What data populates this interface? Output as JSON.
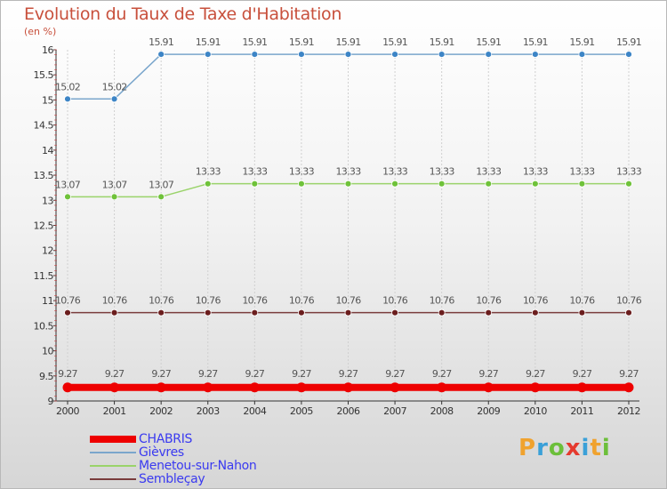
{
  "chart_data": {
    "type": "line",
    "title": "Evolution du Taux de Taxe d'Habitation",
    "ylabel": "(en %)",
    "xlabel": "",
    "categories": [
      "2000",
      "2001",
      "2002",
      "2003",
      "2004",
      "2005",
      "2006",
      "2007",
      "2008",
      "2009",
      "2010",
      "2011",
      "2012"
    ],
    "ylim": [
      9,
      16
    ],
    "yticks": [
      "9",
      "9.5",
      "10",
      "10.5",
      "11",
      "11.5",
      "12",
      "12.5",
      "13",
      "13.5",
      "14",
      "14.5",
      "15",
      "15.5",
      "16"
    ],
    "series": [
      {
        "name": "Gièvres",
        "color": "#7aa6cc",
        "marker": "#3d85c6",
        "width": 1.5,
        "values": [
          15.02,
          15.02,
          15.91,
          15.91,
          15.91,
          15.91,
          15.91,
          15.91,
          15.91,
          15.91,
          15.91,
          15.91,
          15.91
        ],
        "labels": [
          "15.02",
          "15.02",
          "15.91",
          "15.91",
          "15.91",
          "15.91",
          "15.91",
          "15.91",
          "15.91",
          "15.91",
          "15.91",
          "15.91",
          "15.91"
        ]
      },
      {
        "name": "Menetou-sur-Nahon",
        "color": "#9ad36a",
        "marker": "#6fc23a",
        "width": 1.5,
        "values": [
          13.07,
          13.07,
          13.07,
          13.33,
          13.33,
          13.33,
          13.33,
          13.33,
          13.33,
          13.33,
          13.33,
          13.33,
          13.33
        ],
        "labels": [
          "13.07",
          "13.07",
          "13.07",
          "13.33",
          "13.33",
          "13.33",
          "13.33",
          "13.33",
          "13.33",
          "13.33",
          "13.33",
          "13.33",
          "13.33"
        ]
      },
      {
        "name": "Sembleçay",
        "color": "#7a3c3c",
        "marker": "#6b1e1e",
        "width": 1.5,
        "values": [
          10.76,
          10.76,
          10.76,
          10.76,
          10.76,
          10.76,
          10.76,
          10.76,
          10.76,
          10.76,
          10.76,
          10.76,
          10.76
        ],
        "labels": [
          "10.76",
          "10.76",
          "10.76",
          "10.76",
          "10.76",
          "10.76",
          "10.76",
          "10.76",
          "10.76",
          "10.76",
          "10.76",
          "10.76",
          "10.76"
        ]
      },
      {
        "name": "CHABRIS",
        "color": "#ee0000",
        "marker": "#ee0000",
        "width": 8,
        "values": [
          9.27,
          9.27,
          9.27,
          9.27,
          9.27,
          9.27,
          9.27,
          9.27,
          9.27,
          9.27,
          9.27,
          9.27,
          9.27
        ],
        "labels": [
          "9.27",
          "9.27",
          "9.27",
          "9.27",
          "9.27",
          "9.27",
          "9.27",
          "9.27",
          "9.27",
          "9.27",
          "9.27",
          "9.27",
          "9.27"
        ]
      }
    ]
  },
  "legend": [
    {
      "name": "CHABRIS",
      "color": "#ee0000",
      "thickness": 8
    },
    {
      "name": "Gièvres",
      "color": "#7aa6cc",
      "thickness": 2
    },
    {
      "name": "Menetou-sur-Nahon",
      "color": "#9ad36a",
      "thickness": 2
    },
    {
      "name": "Sembleçay",
      "color": "#7a3c3c",
      "thickness": 2
    }
  ],
  "logo": {
    "text": "Proxiti",
    "letters": [
      {
        "ch": "P",
        "color": "#f0a22e"
      },
      {
        "ch": "r",
        "color": "#3aa0d8"
      },
      {
        "ch": "o",
        "color": "#6cbf3a"
      },
      {
        "ch": "x",
        "color": "#e53a2e"
      },
      {
        "ch": "i",
        "color": "#3aa0d8"
      },
      {
        "ch": "t",
        "color": "#f0a22e"
      },
      {
        "ch": "i",
        "color": "#6cbf3a"
      }
    ]
  }
}
